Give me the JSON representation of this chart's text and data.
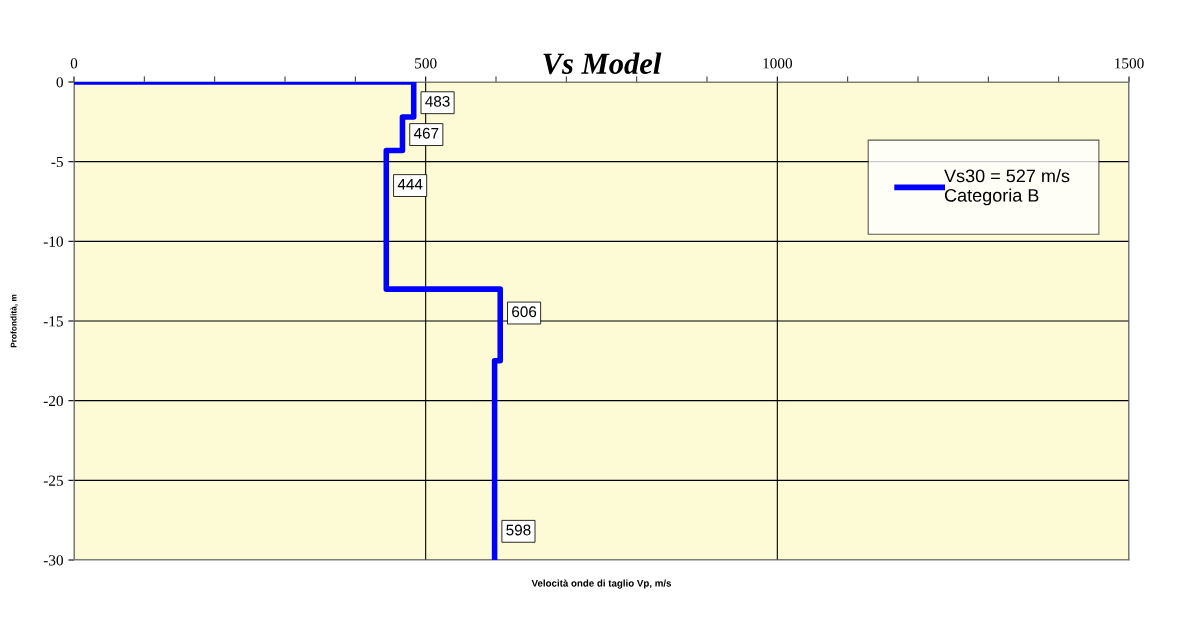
{
  "chart_data": {
    "type": "line",
    "title": "Vs Model",
    "xlabel": "Velocità onde di taglio Vp, m/s",
    "ylabel": "Profondità, m",
    "series": [
      {
        "name": "Vs30 = 527 m/s\nCategoria B",
        "color": "#0000ff",
        "x": [
          0,
          483,
          483,
          467,
          467,
          444,
          444,
          606,
          606,
          598,
          598
        ],
        "values": [
          0,
          0,
          -2.2,
          -2.2,
          -4.3,
          -4.3,
          -13,
          -13,
          -17.5,
          -17.5,
          -30
        ]
      }
    ],
    "annotations": [
      {
        "text": "483",
        "x": 483,
        "y": -1.3
      },
      {
        "text": "467",
        "x": 467,
        "y": -3.3
      },
      {
        "text": "444",
        "x": 444,
        "y": -6.5
      },
      {
        "text": "606",
        "x": 606,
        "y": -14.5
      },
      {
        "text": "598",
        "x": 598,
        "y": -28.2
      }
    ],
    "xlim": [
      0,
      1500
    ],
    "xticks": [
      0,
      {
        "value": 100,
        "label": null
      },
      {
        "value": 200,
        "label": null
      },
      {
        "value": 300,
        "label": null
      },
      {
        "value": 400,
        "label": null
      },
      500,
      {
        "value": 600,
        "label": null
      },
      {
        "value": 700,
        "label": null
      },
      {
        "value": 800,
        "label": null
      },
      {
        "value": 900,
        "label": null
      },
      1000,
      {
        "value": 1100,
        "label": null
      },
      {
        "value": 1200,
        "label": null
      },
      {
        "value": 1300,
        "label": null
      },
      {
        "value": 1400,
        "label": null
      },
      1500
    ],
    "ylim": [
      -30,
      0
    ],
    "yticks": [
      0,
      -5,
      -10,
      -15,
      -20,
      -25,
      -30
    ],
    "grid": true,
    "legend": "right",
    "marker": "none",
    "line_style": "solid"
  }
}
